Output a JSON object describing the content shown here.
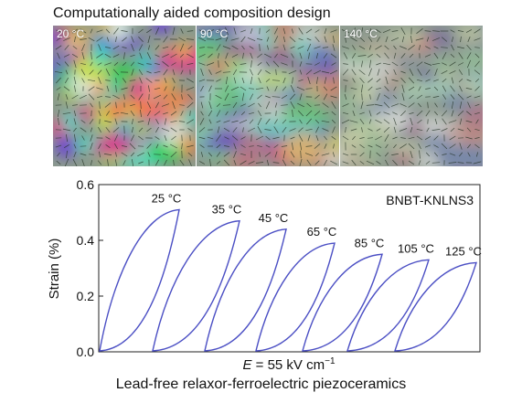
{
  "figure": {
    "top_title": "Computationally aided composition design",
    "bottom_title": "Lead-free relaxor-ferroelectric piezoceramics"
  },
  "panels": [
    {
      "label": "20 °C",
      "saturation": 1.0
    },
    {
      "label": "90 °C",
      "saturation": 0.75
    },
    {
      "label": "140 °C",
      "saturation": 0.45
    }
  ],
  "chart_data": {
    "type": "line",
    "ylabel": "Strain (%)",
    "xlabel_italic": "E",
    "xlabel_value": " = 55 kV cm",
    "xlabel_sup": "−1",
    "ylim": [
      0,
      0.6
    ],
    "yticks": [
      "0.0",
      "0.2",
      "0.4",
      "0.6"
    ],
    "annotation": "BNBT-KNLNS3",
    "line_color": "#4b4fc4",
    "series": [
      {
        "name": "25 °C",
        "max_strain": 0.51
      },
      {
        "name": "35 °C",
        "max_strain": 0.47
      },
      {
        "name": "45 °C",
        "max_strain": 0.44
      },
      {
        "name": "65 °C",
        "max_strain": 0.39
      },
      {
        "name": "85 °C",
        "max_strain": 0.35
      },
      {
        "name": "105 °C",
        "max_strain": 0.33
      },
      {
        "name": "125 °C",
        "max_strain": 0.32
      }
    ]
  }
}
